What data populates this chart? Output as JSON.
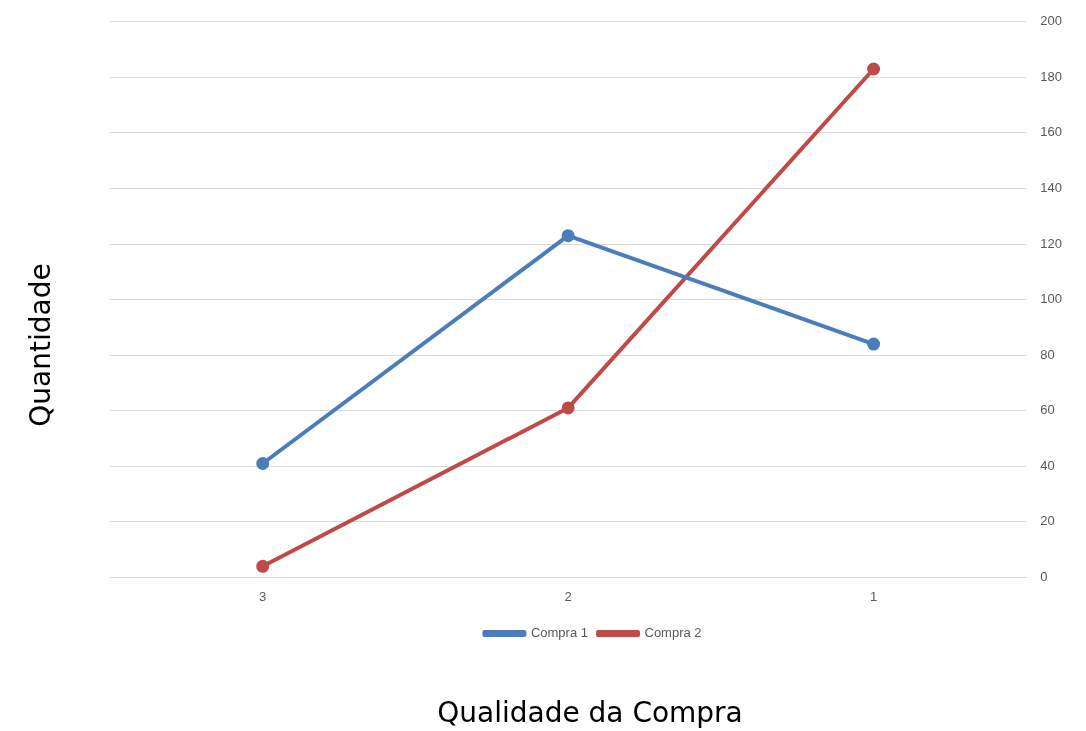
{
  "chart_data": {
    "type": "line",
    "xlabel": "Qualidade da Compra",
    "ylabel": "Quantidade",
    "categories": [
      "3",
      "2",
      "1"
    ],
    "series": [
      {
        "name": "Compra 1",
        "color": "#4a7ebb",
        "values": [
          41,
          123,
          84
        ]
      },
      {
        "name": "Compra 2",
        "color": "#be4b48",
        "values": [
          4,
          61,
          183
        ]
      }
    ],
    "ylim": [
      0,
      200
    ],
    "yticks": [
      0,
      20,
      40,
      60,
      80,
      100,
      120,
      140,
      160,
      180,
      200
    ],
    "grid": "y",
    "legend": "bottom",
    "marker": "circle"
  }
}
